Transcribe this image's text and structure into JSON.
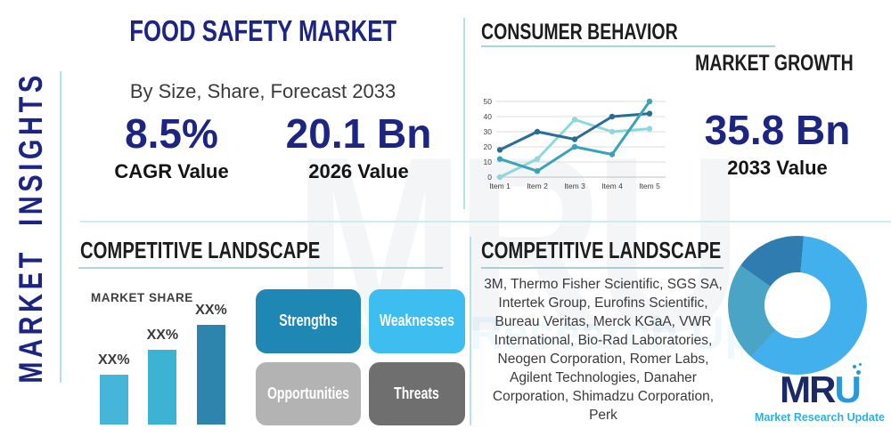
{
  "sidebar": {
    "label": "MARKET INSIGHTS"
  },
  "header": {
    "title": "FOOD SAFETY MARKET",
    "subtitle": "By Size, Share, Forecast 2033"
  },
  "stats": {
    "cagr": {
      "value": "8.5%",
      "label": "CAGR Value"
    },
    "y2026": {
      "value": "20.1 Bn",
      "label": "2026 Value"
    },
    "y2033": {
      "value": "35.8 Bn",
      "label": "2033 Value"
    }
  },
  "sections": {
    "consumer_behavior": {
      "title": "CONSUMER BEHAVIOR",
      "subtitle": "MARKET GROWTH"
    },
    "competitive_left": {
      "title": "COMPETITIVE LANDSCAPE"
    },
    "competitive_right": {
      "title": "COMPETITIVE LANDSCAPE",
      "companies": "3M, Thermo Fisher Scientific, SGS SA, Intertek Group, Eurofins Scientific, Bureau Veritas, Merck KGaA, VWR International, Bio-Rad Laboratories, Neogen Corporation, Romer Labs, Agilent Technologies, Danaher Corporation, Shimadzu Corporation, Perk"
    }
  },
  "swot": {
    "items": [
      {
        "label": "Strengths",
        "color": "#1e87b4"
      },
      {
        "label": "Weaknesses",
        "color": "#3ebdf0"
      },
      {
        "label": "Opportunities",
        "color": "#b3b3b3"
      },
      {
        "label": "Threats",
        "color": "#6f6f6f"
      }
    ]
  },
  "logo": {
    "m": "M",
    "r": "R",
    "u": "U",
    "tagline": "Market Research Update"
  },
  "watermark": {
    "text": "MRU",
    "tagline": "Market Research Update"
  },
  "colors": {
    "navy": "#1d2583",
    "heading": "#1d1d1d",
    "separator": "#cfe9f0"
  },
  "chart_data": [
    {
      "type": "line",
      "title": "",
      "x": [
        "Item 1",
        "Item 2",
        "Item 3",
        "Item 4",
        "Item 5"
      ],
      "series": [
        {
          "name": "light-cyan-series",
          "color": "#8ed8dc",
          "values": [
            0,
            12,
            38,
            30,
            32
          ]
        },
        {
          "name": "dark-blue-series",
          "color": "#2a6d93",
          "values": [
            18,
            30,
            25,
            40,
            42
          ]
        },
        {
          "name": "teal-series",
          "color": "#3aa3ba",
          "values": [
            12,
            4,
            20,
            15,
            50
          ]
        }
      ],
      "ylim": [
        0,
        50
      ],
      "yticks": [
        0,
        10,
        20,
        30,
        40,
        50
      ],
      "grid": true,
      "legend": "none"
    },
    {
      "type": "bar",
      "title": "MARKET SHARE",
      "labels": [
        "XX%",
        "XX%",
        "XX%"
      ],
      "values": [
        20,
        30,
        40
      ],
      "unit": "relative",
      "colors": [
        "#45b6d9",
        "#3cb3d3",
        "#2d84ad"
      ]
    },
    {
      "type": "pie",
      "donut": true,
      "labels": [
        "segment-1",
        "segment-2",
        "segment-3"
      ],
      "values": [
        60.3,
        23.1,
        16.6
      ],
      "colors": [
        "#41b0ec",
        "#4aa4c6",
        "#2e7cb0"
      ],
      "start_angle_deg": 5
    }
  ]
}
